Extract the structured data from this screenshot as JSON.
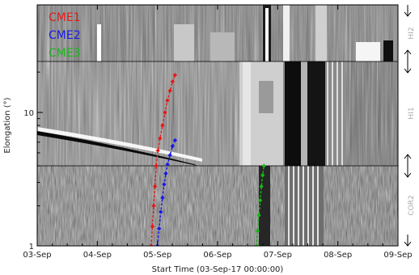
{
  "chart_data": {
    "type": "scatter",
    "title": "",
    "xlabel": "Start Time (03-Sep-17 00:00:00)",
    "ylabel": "Elongation (°)",
    "xaxis_type": "time",
    "x_ticks": [
      "03-Sep",
      "04-Sep",
      "05-Sep",
      "06-Sep",
      "07-Sep",
      "08-Sep",
      "09-Sep"
    ],
    "xlim": [
      "2017-09-03 00:00",
      "2017-09-09 00:00"
    ],
    "yscale": "log",
    "y_ticks": [
      1,
      10
    ],
    "panel_boundaries_deg": [
      4,
      24
    ],
    "panels": [
      "COR2",
      "HI1",
      "HI2"
    ],
    "grid": false,
    "legend_position": "top-left",
    "background": "grayscale running-difference J-map",
    "series": [
      {
        "name": "CME1",
        "color": "#e81818",
        "style": "line with diamond markers",
        "points": [
          [
            "2017-09-04 21:30",
            1.0
          ],
          [
            "2017-09-04 22:00",
            1.4
          ],
          [
            "2017-09-04 22:30",
            2.0
          ],
          [
            "2017-09-04 23:00",
            2.8
          ],
          [
            "2017-09-04 23:30",
            4.0
          ],
          [
            "2017-09-05 00:10",
            5.2
          ],
          [
            "2017-09-05 01:00",
            6.4
          ],
          [
            "2017-09-05 02:00",
            8.0
          ],
          [
            "2017-09-05 03:00",
            10.0
          ],
          [
            "2017-09-05 04:00",
            12.3
          ],
          [
            "2017-09-05 05:00",
            14.5
          ],
          [
            "2017-09-05 06:00",
            17.0
          ],
          [
            "2017-09-05 07:00",
            19.0
          ]
        ]
      },
      {
        "name": "CME2",
        "color": "#1818e8",
        "style": "line with diamond markers",
        "points": [
          [
            "2017-09-05 00:00",
            1.0
          ],
          [
            "2017-09-05 00:40",
            1.35
          ],
          [
            "2017-09-05 01:20",
            1.8
          ],
          [
            "2017-09-05 02:00",
            2.3
          ],
          [
            "2017-09-05 02:40",
            2.9
          ],
          [
            "2017-09-05 03:20",
            3.5
          ],
          [
            "2017-09-05 04:00",
            4.1
          ],
          [
            "2017-09-05 05:00",
            4.8
          ],
          [
            "2017-09-05 06:00",
            5.6
          ],
          [
            "2017-09-05 07:00",
            6.2
          ]
        ]
      },
      {
        "name": "CME3",
        "color": "#18b818",
        "style": "line with diamond markers",
        "points": [
          [
            "2017-09-06 15:30",
            1.0
          ],
          [
            "2017-09-06 16:00",
            1.3
          ],
          [
            "2017-09-06 16:30",
            1.7
          ],
          [
            "2017-09-06 17:00",
            2.2
          ],
          [
            "2017-09-06 17:30",
            2.8
          ],
          [
            "2017-09-06 18:00",
            3.4
          ],
          [
            "2017-09-06 18:30",
            4.0
          ]
        ]
      }
    ]
  }
}
